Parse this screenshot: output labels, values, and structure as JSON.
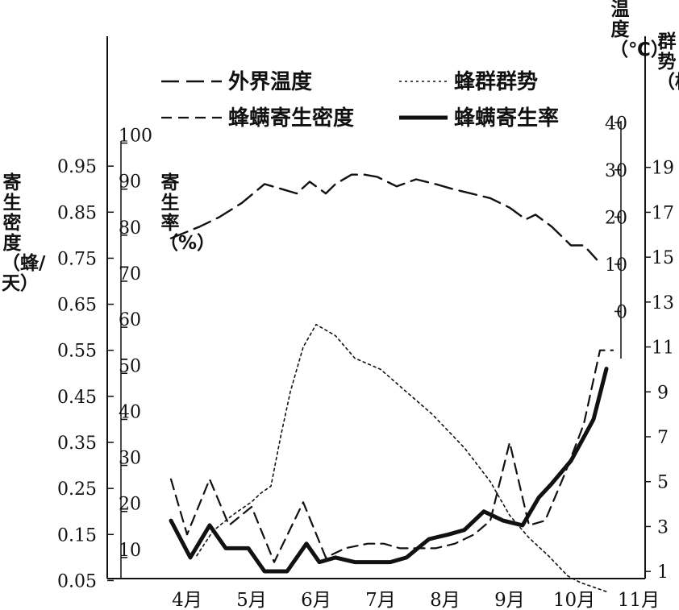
{
  "chart_data": {
    "type": "line",
    "x_ticks": [
      "4月",
      "5月",
      "6月",
      "7月",
      "8月",
      "9月",
      "10月",
      "11月"
    ],
    "axes": {
      "density": {
        "label": "寄生密度（蜂/天）",
        "ticks": [
          "0.05",
          "0.15",
          "0.25",
          "0.35",
          "0.45",
          "0.55",
          "0.65",
          "0.75",
          "0.85",
          "0.95"
        ],
        "range": [
          0,
          1.05
        ]
      },
      "rate": {
        "label": "寄生率（%）",
        "ticks": [
          "10",
          "20",
          "30",
          "40",
          "50",
          "60",
          "70",
          "80",
          "90",
          "100"
        ],
        "range": [
          0,
          105
        ]
      },
      "temperature": {
        "label": "温度（℃）",
        "ticks": [
          "0",
          "10",
          "20",
          "30",
          "40"
        ],
        "range": [
          -10,
          45
        ]
      },
      "colony": {
        "label": "群势（框）",
        "ticks": [
          "1",
          "3",
          "5",
          "7",
          "9",
          "11",
          "13",
          "15",
          "17",
          "19"
        ],
        "range": [
          0,
          21
        ]
      }
    },
    "legend": [
      {
        "key": "temperature",
        "label": "外界温度",
        "style": "long-dash"
      },
      {
        "key": "colony",
        "label": "蜂群群势",
        "style": "dotted"
      },
      {
        "key": "density",
        "label": "蜂螨寄生密度",
        "style": "dashed"
      },
      {
        "key": "rate",
        "label": "蜂螨寄生率",
        "style": "solid-bold"
      }
    ],
    "series": [
      {
        "name": "外界温度",
        "axis": "temperature",
        "style": "long-dash",
        "x": [
          3.75,
          4.2,
          4.5,
          4.85,
          5.2,
          5.45,
          5.7,
          5.9,
          6.15,
          6.3,
          6.55,
          6.75,
          6.95,
          7.25,
          7.55,
          7.85,
          8.1,
          8.4,
          8.7,
          9.0,
          9.25,
          9.4,
          9.65,
          9.95,
          10.15,
          10.35
        ],
        "y": [
          15.5,
          18,
          20,
          23,
          27,
          26,
          25,
          27.5,
          25,
          27,
          29,
          29,
          28.5,
          26.5,
          28,
          27,
          26,
          25,
          24,
          22,
          19.5,
          20.5,
          18,
          14,
          14,
          11
        ]
      },
      {
        "name": "蜂群群势",
        "axis": "colony",
        "style": "dotted",
        "x": [
          4.15,
          4.4,
          4.7,
          5.0,
          5.15,
          5.3,
          5.45,
          5.6,
          5.8,
          6.0,
          6.3,
          6.6,
          7.0,
          7.4,
          7.8,
          8.3,
          8.7,
          9.0,
          9.3,
          9.6,
          9.9,
          10.1,
          10.3,
          10.5
        ],
        "y": [
          1.7,
          2.8,
          3.5,
          4.1,
          4.5,
          4.8,
          7,
          9,
          11,
          12,
          11.5,
          10.5,
          10,
          9,
          8,
          6.5,
          5,
          3.5,
          2.5,
          1.7,
          0.8,
          0.5,
          0.3,
          0.1
        ]
      },
      {
        "name": "蜂螨寄生密度",
        "axis": "density",
        "style": "dashed",
        "x": [
          3.75,
          4.0,
          4.35,
          4.65,
          5.0,
          5.35,
          5.8,
          6.15,
          6.45,
          6.8,
          7.05,
          7.3,
          7.6,
          7.85,
          8.15,
          8.45,
          8.7,
          9.0,
          9.3,
          9.55,
          9.85,
          10.15,
          10.4,
          10.6
        ],
        "y": [
          0.27,
          0.15,
          0.27,
          0.17,
          0.21,
          0.09,
          0.22,
          0.1,
          0.12,
          0.13,
          0.13,
          0.12,
          0.12,
          0.12,
          0.13,
          0.15,
          0.18,
          0.35,
          0.17,
          0.18,
          0.28,
          0.39,
          0.55,
          0.55
        ]
      },
      {
        "name": "蜂螨寄生率",
        "axis": "rate",
        "style": "solid-bold",
        "x": [
          3.75,
          4.05,
          4.35,
          4.6,
          4.95,
          5.2,
          5.55,
          5.85,
          6.05,
          6.3,
          6.6,
          6.85,
          7.15,
          7.4,
          7.75,
          8.05,
          8.3,
          8.6,
          8.9,
          9.2,
          9.45,
          9.65,
          9.95,
          10.3,
          10.5
        ],
        "y": [
          18,
          10,
          17,
          12,
          12,
          7,
          7,
          13,
          9,
          10,
          9,
          9,
          9,
          10,
          14,
          15,
          16,
          20,
          18,
          17,
          23,
          26,
          31,
          40,
          51
        ]
      }
    ]
  }
}
